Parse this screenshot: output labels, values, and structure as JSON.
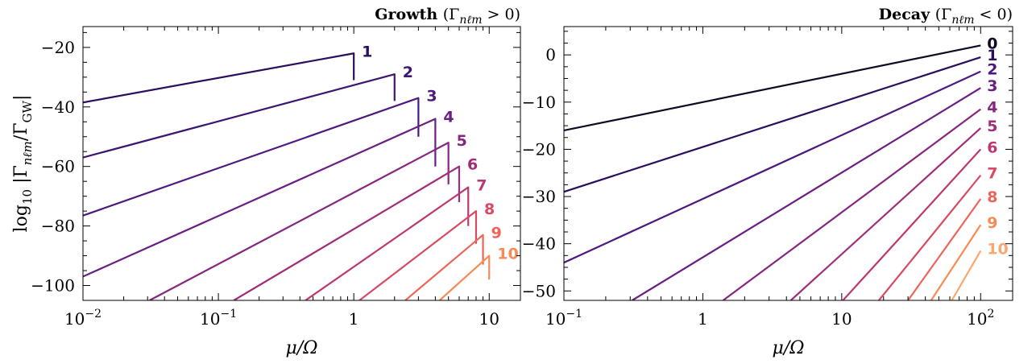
{
  "chart_data": [
    {
      "type": "line",
      "title": "Growth",
      "title_condition": "(Γnℓm > 0)",
      "xlabel": "μ/Ω",
      "ylabel": "log10 |Γnℓm/ΓGW|",
      "xscale": "log",
      "xlim": [
        0.01,
        17
      ],
      "ylim": [
        -105,
        -13
      ],
      "xticks": [
        0.01,
        0.1,
        1,
        10
      ],
      "xtick_labels": [
        "10^-2",
        "10^-1",
        "1",
        "10"
      ],
      "yticks": [
        -100,
        -80,
        -60,
        -40,
        -20
      ],
      "ytick_labels": [
        "−100",
        "−80",
        "−60",
        "−40",
        "−20"
      ],
      "grid": false,
      "legend": "none",
      "series": [
        {
          "label": "1",
          "color": "#2b0f5e",
          "points": [
            [
              0.01,
              -38.5
            ],
            [
              1.0,
              -22.0
            ],
            [
              1.0,
              -31.0
            ]
          ]
        },
        {
          "label": "2",
          "color": "#3c1472",
          "points": [
            [
              0.01,
              -57.0
            ],
            [
              2.0,
              -29.0
            ],
            [
              2.0,
              -38.0
            ]
          ]
        },
        {
          "label": "3",
          "color": "#4d1880",
          "points": [
            [
              0.01,
              -76.5
            ],
            [
              3.0,
              -37.0
            ],
            [
              3.0,
              -50.0
            ]
          ]
        },
        {
          "label": "4",
          "color": "#6a1f82",
          "points": [
            [
              0.01,
              -97.0
            ],
            [
              4.0,
              -44.0
            ],
            [
              4.0,
              -60.0
            ]
          ]
        },
        {
          "label": "5",
          "color": "#85267f",
          "points": [
            [
              0.031,
              -105.0
            ],
            [
              5.0,
              -52.0
            ],
            [
              5.0,
              -66.0
            ]
          ]
        },
        {
          "label": "6",
          "color": "#a02d79",
          "points": [
            [
              0.13,
              -105.0
            ],
            [
              6.0,
              -60.0
            ],
            [
              6.0,
              -72.0
            ]
          ]
        },
        {
          "label": "7",
          "color": "#bd3870",
          "points": [
            [
              0.44,
              -105.0
            ],
            [
              7.0,
              -67.0
            ],
            [
              7.0,
              -80.0
            ]
          ]
        },
        {
          "label": "8",
          "color": "#d84a62",
          "points": [
            [
              1.1,
              -105.0
            ],
            [
              8.0,
              -75.0
            ],
            [
              8.0,
              -86.0
            ]
          ]
        },
        {
          "label": "9",
          "color": "#ed6458",
          "points": [
            [
              2.4,
              -105.0
            ],
            [
              9.0,
              -83.0
            ],
            [
              9.0,
              -93.0
            ]
          ]
        },
        {
          "label": "10",
          "color": "#f88a55",
          "points": [
            [
              4.3,
              -105.0
            ],
            [
              10.0,
              -90.0
            ],
            [
              10.0,
              -98.0
            ]
          ]
        }
      ]
    },
    {
      "type": "line",
      "title": "Decay",
      "title_condition": "(Γnℓm < 0)",
      "xlabel": "μ/Ω",
      "ylabel": "",
      "xscale": "log",
      "xlim": [
        0.1,
        170
      ],
      "ylim": [
        -52,
        6
      ],
      "xticks": [
        0.1,
        1,
        10,
        100
      ],
      "xtick_labels": [
        "10^-1",
        "1",
        "10",
        "10^2"
      ],
      "yticks": [
        -50,
        -40,
        -30,
        -20,
        -10,
        0
      ],
      "ytick_labels": [
        "−50",
        "−40",
        "−30",
        "−20",
        "−10",
        "0"
      ],
      "grid": false,
      "legend": "none",
      "series": [
        {
          "label": "0",
          "color": "#0d0a24",
          "points": [
            [
              0.1,
              -16.0
            ],
            [
              100,
              2.0
            ]
          ]
        },
        {
          "label": "1",
          "color": "#2b0f5e",
          "points": [
            [
              0.1,
              -29.0
            ],
            [
              100,
              -0.5
            ]
          ]
        },
        {
          "label": "2",
          "color": "#4d1880",
          "points": [
            [
              0.1,
              -44.0
            ],
            [
              100,
              -3.5
            ]
          ]
        },
        {
          "label": "3",
          "color": "#6a1f82",
          "points": [
            [
              0.31,
              -52.0
            ],
            [
              100,
              -7.0
            ]
          ]
        },
        {
          "label": "4",
          "color": "#85267f",
          "points": [
            [
              1.4,
              -52.0
            ],
            [
              100,
              -11.5
            ]
          ]
        },
        {
          "label": "5",
          "color": "#a02d79",
          "points": [
            [
              4.3,
              -52.0
            ],
            [
              100,
              -15.5
            ]
          ]
        },
        {
          "label": "6",
          "color": "#bd3870",
          "points": [
            [
              10.2,
              -52.0
            ],
            [
              100,
              -20.0
            ]
          ]
        },
        {
          "label": "7",
          "color": "#d84a62",
          "points": [
            [
              18.5,
              -52.0
            ],
            [
              100,
              -25.5
            ]
          ]
        },
        {
          "label": "8",
          "color": "#ed6458",
          "points": [
            [
              30.0,
              -52.0
            ],
            [
              100,
              -30.5
            ]
          ]
        },
        {
          "label": "9",
          "color": "#f88a55",
          "points": [
            [
              44.0,
              -52.0
            ],
            [
              100,
              -36.0
            ]
          ]
        },
        {
          "label": "10",
          "color": "#fca56e",
          "points": [
            [
              62.0,
              -52.0
            ],
            [
              100,
              -41.5
            ]
          ]
        }
      ]
    }
  ]
}
